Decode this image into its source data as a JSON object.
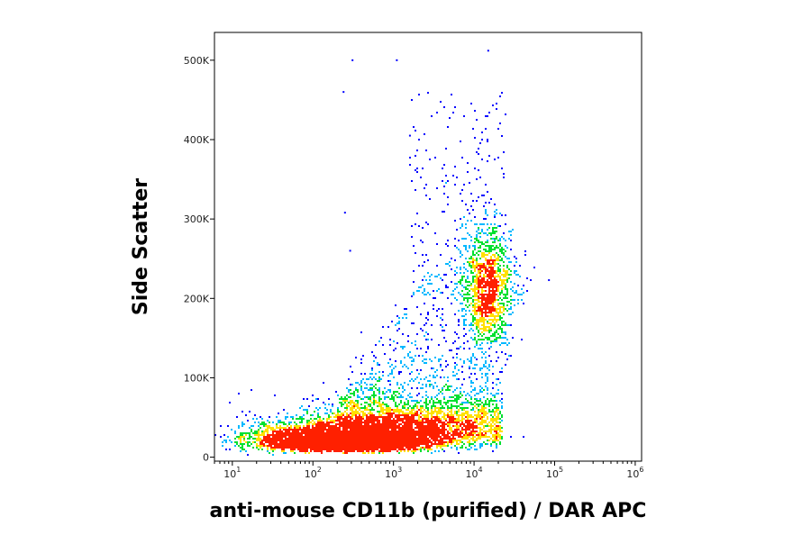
{
  "chart_data": {
    "type": "scatter",
    "title": "",
    "xlabel": "anti-mouse CD11b (purified) / DAR APC",
    "ylabel": "Side Scatter",
    "x_scale": "log",
    "xlim": [
      6,
      1200000
    ],
    "ylim": [
      -5000,
      535000
    ],
    "x_ticks": [
      {
        "base": "10",
        "exp": "1",
        "value": 10
      },
      {
        "base": "10",
        "exp": "2",
        "value": 100
      },
      {
        "base": "10",
        "exp": "3",
        "value": 1000
      },
      {
        "base": "10",
        "exp": "4",
        "value": 10000
      },
      {
        "base": "10",
        "exp": "5",
        "value": 100000
      },
      {
        "base": "10",
        "exp": "6",
        "value": 1000000
      }
    ],
    "y_ticks": [
      {
        "label": "0",
        "value": 0
      },
      {
        "label": "100K",
        "value": 100000
      },
      {
        "label": "200K",
        "value": 200000
      },
      {
        "label": "300K",
        "value": 300000
      },
      {
        "label": "400K",
        "value": 400000
      },
      {
        "label": "500K",
        "value": 500000
      }
    ],
    "grid": false,
    "legend": "none",
    "color_scale": [
      "#0000ff",
      "#00b8ff",
      "#00e030",
      "#ffe000",
      "#ff2000"
    ],
    "populations": [
      {
        "name": "low-SSC main cluster",
        "center_x": 250,
        "center_y": 22000,
        "count": 6000
      },
      {
        "name": "low-SSC CD11b+ tail",
        "center_x": 8000,
        "center_y": 35000,
        "count": 2200
      },
      {
        "name": "high-SSC CD11b+ cluster",
        "center_x": 15000,
        "center_y": 210000,
        "count": 1300
      }
    ],
    "outlier_points": [
      {
        "x": 310,
        "y": 500000
      },
      {
        "x": 240,
        "y": 460000
      },
      {
        "x": 1100,
        "y": 500000
      },
      {
        "x": 15000,
        "y": 512000
      },
      {
        "x": 1600,
        "y": 405000
      },
      {
        "x": 250,
        "y": 308000
      },
      {
        "x": 290,
        "y": 260000
      },
      {
        "x": 85000,
        "y": 223000
      }
    ]
  }
}
